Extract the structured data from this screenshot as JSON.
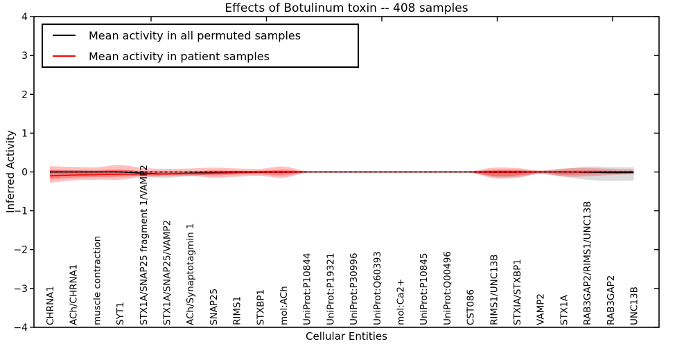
{
  "title": "Effects of Botulinum toxin -- 408 samples",
  "legend": {
    "items": [
      {
        "label": "Mean activity in all permuted samples",
        "color": "#000000"
      },
      {
        "label": "Mean activity in patient samples",
        "color": "#ff0000"
      }
    ]
  },
  "axes": {
    "xlabel": "Cellular Entities",
    "ylabel": "Inferred Activity",
    "ytick_values": [
      4,
      3,
      2,
      1,
      0,
      -1,
      -2,
      -3,
      -4
    ],
    "ytick_labels": [
      "4",
      "3",
      "2",
      "1",
      "0",
      "−1",
      "−2",
      "−3",
      "−4"
    ],
    "ylim": [
      -4,
      4
    ]
  },
  "chart_data": {
    "type": "line",
    "title": "Effects of Botulinum toxin -- 408 samples",
    "xlabel": "Cellular Entities",
    "ylabel": "Inferred Activity",
    "ylim": [
      -4,
      4
    ],
    "grid": false,
    "legend_position": "upper left",
    "zero_reference_line": {
      "y": 0,
      "style": "dashed",
      "color": "#000000"
    },
    "categories": [
      "CHRNA1",
      "ACh/CHRNA1",
      "muscle contraction",
      "SYT1",
      "STX1A/SNAP25 fragment 1/VAMP2",
      "STX1A/SNAP25/VAMP2",
      "ACh/Synaptotagmin 1",
      "SNAP25",
      "RIMS1",
      "STXBP1",
      "mol:ACh",
      "UniProt:P10844",
      "UniProt:P19321",
      "UniProt:P30996",
      "UniProt:Q60393",
      "mol:Ca2+",
      "UniProt:P10845",
      "UniProt:Q00496",
      "CST086",
      "RIMS1/UNC13B",
      "STXIA/STXBP1",
      "VAMP2",
      "STX1A",
      "RAB3GAP2/RIMS1/UNC13B",
      "RAB3GAP2",
      "UNC13B"
    ],
    "series": [
      {
        "name": "Mean activity in all permuted samples",
        "color": "#000000",
        "style": "solid",
        "values": [
          0.0,
          0.0,
          0.0,
          0.0,
          -0.03,
          -0.05,
          -0.03,
          -0.01,
          0.0,
          0.0,
          0.0,
          0.0,
          0.0,
          0.0,
          0.0,
          0.0,
          0.0,
          0.0,
          0.0,
          0.0,
          0.0,
          0.0,
          0.0,
          -0.01,
          -0.02,
          -0.02
        ]
      },
      {
        "name": "Mean activity in patient samples",
        "color": "#ff0000",
        "style": "solid",
        "values": [
          -0.1,
          -0.08,
          -0.07,
          -0.06,
          -0.05,
          -0.05,
          -0.04,
          -0.03,
          -0.02,
          -0.01,
          -0.01,
          0.0,
          0.0,
          0.0,
          0.0,
          0.0,
          0.0,
          0.0,
          0.0,
          -0.01,
          -0.01,
          0.0,
          0.0,
          0.0,
          0.01,
          0.01
        ]
      }
    ],
    "bands": [
      {
        "name": "permuted samples range",
        "color": "#000000",
        "opacity": 0.14,
        "upper": [
          0.06,
          0.05,
          0.05,
          0.05,
          0.03,
          0.02,
          0.02,
          0.03,
          0.02,
          0.02,
          0.02,
          0.01,
          0.005,
          0.005,
          0.005,
          0.005,
          0.005,
          0.005,
          0.01,
          0.06,
          0.06,
          0.03,
          0.08,
          0.14,
          0.12,
          0.12
        ],
        "lower": [
          -0.07,
          -0.06,
          -0.05,
          -0.05,
          -0.12,
          -0.15,
          -0.11,
          -0.06,
          -0.03,
          -0.02,
          -0.02,
          -0.01,
          -0.005,
          -0.005,
          -0.005,
          -0.005,
          -0.005,
          -0.005,
          -0.01,
          -0.13,
          -0.13,
          -0.05,
          -0.12,
          -0.2,
          -0.23,
          -0.22
        ]
      },
      {
        "name": "patient samples outer range",
        "color": "#ff0000",
        "opacity": 0.25,
        "upper": [
          0.15,
          0.13,
          0.12,
          0.18,
          0.1,
          0.08,
          0.09,
          0.11,
          0.09,
          0.08,
          0.14,
          0.02,
          0.01,
          0.01,
          0.01,
          0.01,
          0.01,
          0.01,
          0.02,
          0.11,
          0.1,
          0.04,
          0.09,
          0.1,
          0.08,
          0.06
        ],
        "lower": [
          -0.28,
          -0.22,
          -0.2,
          -0.2,
          -0.13,
          -0.11,
          -0.1,
          -0.15,
          -0.12,
          -0.1,
          -0.15,
          -0.02,
          -0.01,
          -0.01,
          -0.01,
          -0.01,
          -0.01,
          -0.01,
          -0.02,
          -0.16,
          -0.15,
          -0.05,
          -0.12,
          -0.11,
          -0.08,
          -0.05
        ]
      },
      {
        "name": "patient samples inner range",
        "color": "#ff0000",
        "opacity": 0.3,
        "upper": [
          0.05,
          0.04,
          0.03,
          0.06,
          0.02,
          0.01,
          0.02,
          0.04,
          0.03,
          0.03,
          0.06,
          0.01,
          0.005,
          0.005,
          0.005,
          0.005,
          0.005,
          0.005,
          0.01,
          0.04,
          0.04,
          0.01,
          0.03,
          0.04,
          0.03,
          0.02
        ],
        "lower": [
          -0.18,
          -0.15,
          -0.13,
          -0.12,
          -0.09,
          -0.08,
          -0.07,
          -0.09,
          -0.07,
          -0.06,
          -0.09,
          -0.01,
          -0.005,
          -0.005,
          -0.005,
          -0.005,
          -0.005,
          -0.005,
          -0.01,
          -0.1,
          -0.09,
          -0.02,
          -0.07,
          -0.06,
          -0.04,
          -0.03
        ]
      }
    ]
  }
}
